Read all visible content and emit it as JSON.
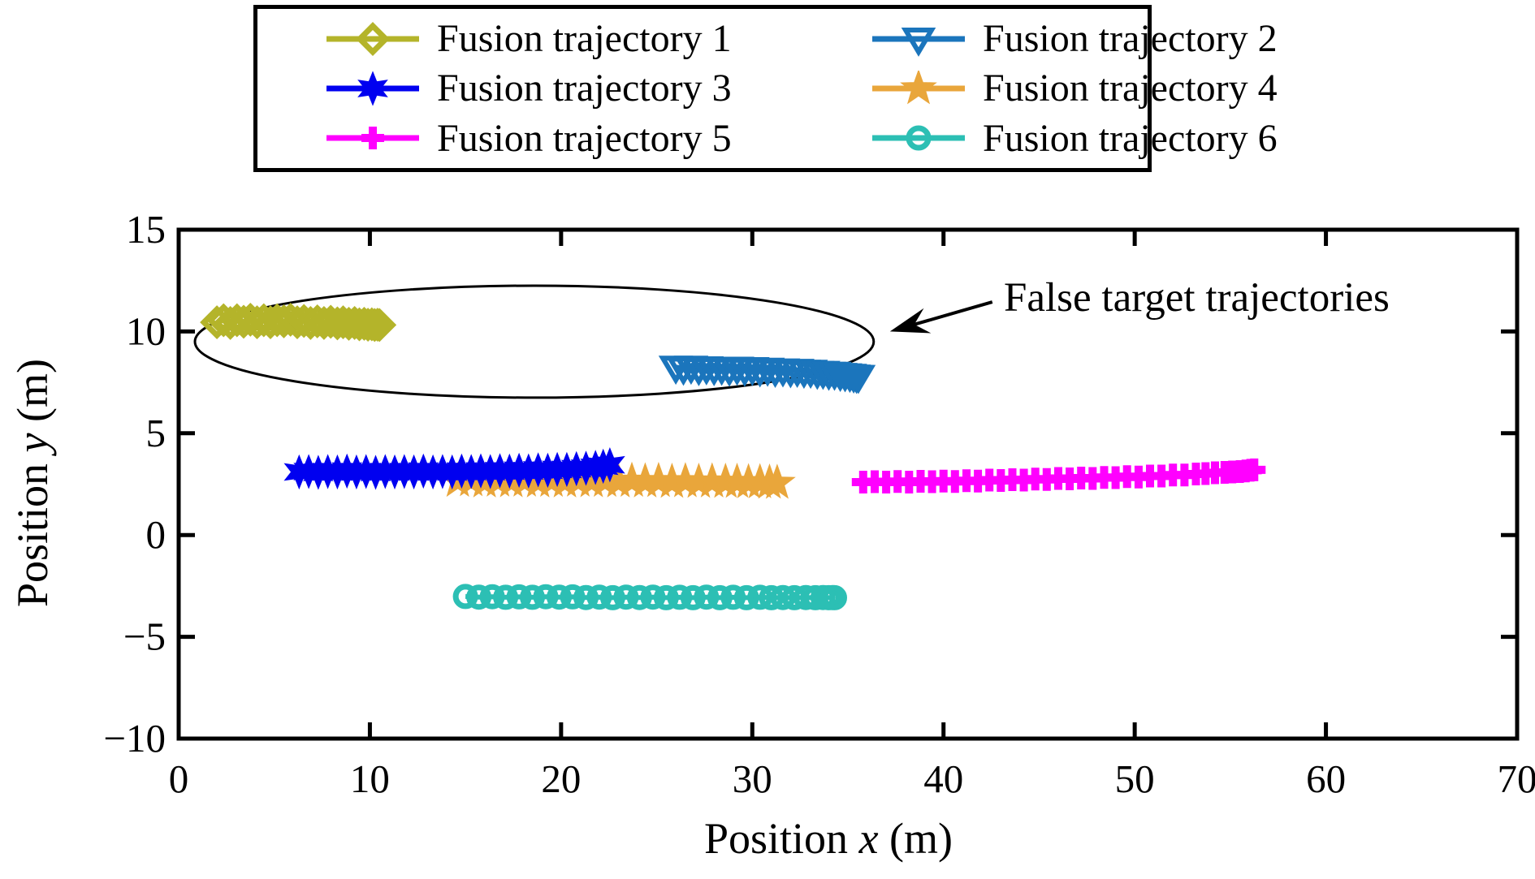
{
  "figure": {
    "axes": {
      "xlabel_parts": [
        "Position ",
        "x",
        " (m)"
      ],
      "ylabel_parts": [
        "Position ",
        "y",
        " (m)"
      ]
    }
  },
  "chart_data": {
    "type": "scatter",
    "title": "",
    "xlabel": "Position x (m)",
    "ylabel": "Position y (m)",
    "xlim": [
      0,
      70
    ],
    "ylim": [
      -10,
      15
    ],
    "xticks": [
      0,
      10,
      20,
      30,
      40,
      50,
      60,
      70
    ],
    "xticklabels": [
      "0",
      "10",
      "20",
      "30",
      "40",
      "50",
      "60",
      "70"
    ],
    "yticks": [
      15,
      10,
      5,
      0,
      -5,
      -10
    ],
    "yticklabels": [
      "15",
      "10",
      "5",
      "0",
      "−5",
      "−10"
    ],
    "grid": false,
    "legend_position": "top",
    "frame_color": "#000000",
    "series": [
      {
        "name": "Fusion trajectory 1",
        "color": "#b4b42a",
        "marker": "diamond",
        "marker_fill": "open",
        "x": [
          2.0,
          2.35,
          2.7,
          3.05,
          3.4,
          3.75,
          4.1,
          4.45,
          4.8,
          5.15,
          5.5,
          5.85,
          6.2,
          6.55,
          6.9,
          7.25,
          7.6,
          7.95,
          8.3,
          8.6,
          8.9,
          9.2,
          9.45,
          9.7,
          9.9,
          10.1,
          10.25,
          10.4,
          10.5
        ],
        "y": [
          10.45,
          10.55,
          10.42,
          10.55,
          10.48,
          10.58,
          10.45,
          10.55,
          10.45,
          10.55,
          10.5,
          10.58,
          10.45,
          10.52,
          10.42,
          10.5,
          10.42,
          10.48,
          10.4,
          10.45,
          10.38,
          10.42,
          10.35,
          10.38,
          10.33,
          10.35,
          10.32,
          10.33,
          10.32
        ]
      },
      {
        "name": "Fusion trajectory 2",
        "color": "#1b75bc",
        "marker": "triangle-down",
        "marker_fill": "open",
        "x": [
          26.0,
          26.4,
          26.8,
          27.2,
          27.6,
          28.0,
          28.4,
          28.8,
          29.2,
          29.6,
          30.0,
          30.4,
          30.8,
          31.2,
          31.6,
          32.0,
          32.35,
          32.7,
          33.05,
          33.4,
          33.7,
          34.0,
          34.3,
          34.6,
          34.85,
          35.1,
          35.3,
          35.45,
          35.55
        ],
        "y": [
          8.25,
          8.2,
          8.25,
          8.18,
          8.22,
          8.18,
          8.2,
          8.15,
          8.2,
          8.15,
          8.18,
          8.12,
          8.15,
          8.1,
          8.12,
          8.08,
          8.1,
          8.05,
          8.05,
          8.0,
          8.0,
          7.95,
          7.95,
          7.9,
          7.88,
          7.85,
          7.82,
          7.8,
          7.8
        ]
      },
      {
        "name": "Fusion trajectory 3",
        "color": "#0000f0",
        "marker": "hexagram",
        "marker_fill": "filled",
        "x": [
          6.3,
          6.8,
          7.3,
          7.8,
          8.3,
          8.8,
          9.3,
          9.8,
          10.3,
          10.8,
          11.3,
          11.8,
          12.3,
          12.8,
          13.3,
          13.8,
          14.3,
          14.8,
          15.3,
          15.8,
          16.3,
          16.8,
          17.3,
          17.8,
          18.3,
          18.8,
          19.3,
          19.8,
          20.3,
          20.8,
          21.3,
          21.8,
          22.2,
          22.55
        ],
        "y": [
          3.1,
          3.12,
          3.08,
          3.12,
          3.1,
          3.14,
          3.1,
          3.12,
          3.08,
          3.12,
          3.1,
          3.12,
          3.1,
          3.14,
          3.1,
          3.12,
          3.1,
          3.14,
          3.12,
          3.15,
          3.12,
          3.16,
          3.14,
          3.18,
          3.15,
          3.2,
          3.18,
          3.22,
          3.22,
          3.26,
          3.28,
          3.32,
          3.38,
          3.45
        ]
      },
      {
        "name": "Fusion trajectory 4",
        "color": "#e9a63b",
        "marker": "star",
        "marker_fill": "filled",
        "x": [
          14.6,
          15.3,
          16.0,
          16.7,
          17.4,
          18.1,
          18.8,
          19.5,
          20.2,
          20.9,
          21.6,
          22.3,
          23.0,
          23.7,
          24.4,
          25.1,
          25.8,
          26.5,
          27.2,
          27.9,
          28.6,
          29.2,
          29.8,
          30.4,
          30.9,
          31.3
        ],
        "y": [
          2.65,
          2.68,
          2.62,
          2.66,
          2.63,
          2.66,
          2.62,
          2.65,
          2.62,
          2.66,
          2.63,
          2.65,
          2.62,
          2.65,
          2.62,
          2.64,
          2.6,
          2.63,
          2.6,
          2.62,
          2.6,
          2.6,
          2.58,
          2.58,
          2.56,
          2.55
        ]
      },
      {
        "name": "Fusion trajectory 5",
        "color": "#ff00ff",
        "marker": "plus",
        "marker_fill": "open",
        "x": [
          35.8,
          36.4,
          37.0,
          37.6,
          38.2,
          38.8,
          39.4,
          40.0,
          40.6,
          41.2,
          41.8,
          42.4,
          43.0,
          43.6,
          44.2,
          44.8,
          45.4,
          46.0,
          46.6,
          47.2,
          47.8,
          48.4,
          49.0,
          49.6,
          50.2,
          50.8,
          51.4,
          52.0,
          52.6,
          53.2,
          53.7,
          54.2,
          54.7,
          55.1,
          55.5,
          55.8,
          56.05,
          56.25
        ],
        "y": [
          2.6,
          2.62,
          2.6,
          2.63,
          2.6,
          2.64,
          2.62,
          2.65,
          2.63,
          2.67,
          2.65,
          2.7,
          2.68,
          2.72,
          2.7,
          2.75,
          2.73,
          2.78,
          2.76,
          2.8,
          2.78,
          2.83,
          2.82,
          2.87,
          2.85,
          2.9,
          2.9,
          2.95,
          2.95,
          3.0,
          3.02,
          3.06,
          3.08,
          3.1,
          3.12,
          3.15,
          3.18,
          3.2
        ]
      },
      {
        "name": "Fusion trajectory 6",
        "color": "#2cbfb4",
        "marker": "circle",
        "marker_fill": "open",
        "x": [
          15.0,
          15.7,
          16.4,
          17.1,
          17.8,
          18.5,
          19.2,
          19.9,
          20.6,
          21.3,
          22.0,
          22.7,
          23.4,
          24.1,
          24.8,
          25.5,
          26.2,
          26.9,
          27.6,
          28.3,
          29.0,
          29.7,
          30.4,
          31.0,
          31.6,
          32.2,
          32.8,
          33.3,
          33.7,
          34.0,
          34.2,
          34.3
        ],
        "y": [
          -3.02,
          -3.05,
          -3.03,
          -3.06,
          -3.04,
          -3.06,
          -3.03,
          -3.05,
          -3.04,
          -3.07,
          -3.05,
          -3.08,
          -3.05,
          -3.07,
          -3.05,
          -3.08,
          -3.06,
          -3.08,
          -3.05,
          -3.08,
          -3.06,
          -3.08,
          -3.06,
          -3.08,
          -3.07,
          -3.08,
          -3.07,
          -3.08,
          -3.07,
          -3.08,
          -3.07,
          -3.08
        ]
      }
    ],
    "annotations": [
      {
        "type": "ellipse",
        "cx": 18.6,
        "cy": 9.5,
        "rx": 17.75,
        "ry": 2.75,
        "color": "#000000"
      },
      {
        "type": "arrow",
        "from": [
          42.55,
          11.45
        ],
        "to": [
          37.2,
          10.0
        ],
        "color": "#000000"
      },
      {
        "type": "text",
        "x": 43.1,
        "y": 11.5,
        "text": "False target trajectories"
      }
    ]
  }
}
